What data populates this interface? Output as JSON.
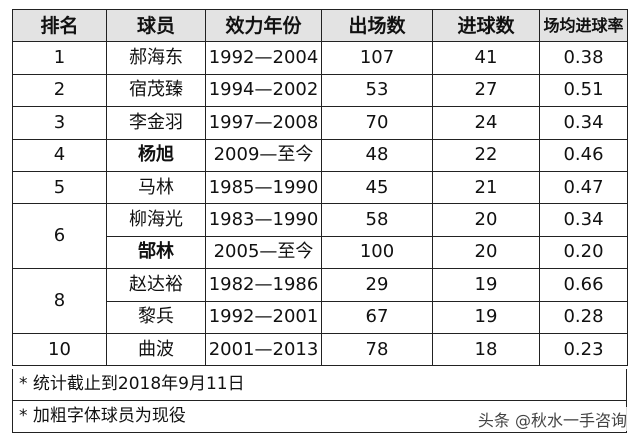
{
  "headers": [
    "排名",
    "球员",
    "效力年份",
    "出场数",
    "进球数",
    "场均进球率"
  ],
  "rows": [
    {
      "rank": "1",
      "player": "郝海东",
      "years": "1992—2004",
      "apps": "107",
      "goals": "41",
      "ratio": "0.38",
      "active": false
    },
    {
      "rank": "2",
      "player": "宿茂臻",
      "years": "1994—2002",
      "apps": "53",
      "goals": "27",
      "ratio": "0.51",
      "active": false
    },
    {
      "rank": "3",
      "player": "李金羽",
      "years": "1997—2008",
      "apps": "70",
      "goals": "24",
      "ratio": "0.34",
      "active": false
    },
    {
      "rank": "4",
      "player": "杨旭",
      "years": "2009—至今",
      "apps": "48",
      "goals": "22",
      "ratio": "0.46",
      "active": true
    },
    {
      "rank": "5",
      "player": "马林",
      "years": "1985—1990",
      "apps": "45",
      "goals": "21",
      "ratio": "0.47",
      "active": false
    },
    {
      "rank": "6",
      "player": "柳海光",
      "years": "1983—1990",
      "apps": "58",
      "goals": "20",
      "ratio": "0.34",
      "active": false
    },
    {
      "rank": "",
      "player": "郜林",
      "years": "2005—至今",
      "apps": "100",
      "goals": "20",
      "ratio": "0.20",
      "active": true
    },
    {
      "rank": "8",
      "player": "赵达裕",
      "years": "1982—1986",
      "apps": "29",
      "goals": "19",
      "ratio": "0.66",
      "active": false
    },
    {
      "rank": "",
      "player": "黎兵",
      "years": "1992—2001",
      "apps": "67",
      "goals": "19",
      "ratio": "0.28",
      "active": false
    },
    {
      "rank": "10",
      "player": "曲波",
      "years": "2001—2013",
      "apps": "78",
      "goals": "18",
      "ratio": "0.23",
      "active": false
    }
  ],
  "notes": [
    "* 统计截止到2018年9月11日",
    "* 加粗字体球员为现役"
  ],
  "watermark": "头条 @秋水一手咨询"
}
